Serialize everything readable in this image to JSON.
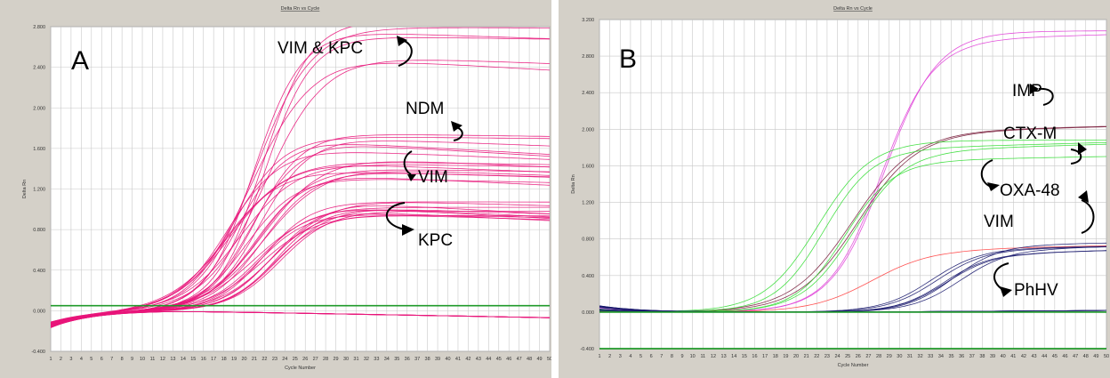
{
  "chart_data": [
    {
      "type": "line",
      "title": "Delta Rn vs Cycle",
      "xlabel": "Cycle Number",
      "ylabel": "Delta Rn",
      "panel_letter": "A",
      "xlim": [
        1,
        50
      ],
      "ylim": [
        -0.4,
        2.8
      ],
      "x_ticks": [
        1,
        2,
        3,
        4,
        5,
        6,
        7,
        8,
        9,
        10,
        11,
        12,
        13,
        14,
        15,
        16,
        17,
        18,
        19,
        20,
        21,
        22,
        23,
        24,
        25,
        26,
        27,
        28,
        29,
        30,
        31,
        32,
        33,
        34,
        35,
        36,
        37,
        38,
        39,
        40,
        41,
        42,
        43,
        44,
        45,
        46,
        47,
        48,
        49,
        50
      ],
      "y_ticks": [
        "-0.400",
        "0.000",
        "0.400",
        "0.800",
        "1.200",
        "1.600",
        "2.000",
        "2.400",
        "2.800"
      ],
      "threshold": 0.05,
      "grid": true,
      "series": [
        {
          "name": "VIM & KPC",
          "color": "#e8157a",
          "plateau": 2.75,
          "ct": 22,
          "count": 6
        },
        {
          "name": "NDM",
          "color": "#e8157a",
          "plateau": 1.75,
          "ct": 20,
          "count": 6
        },
        {
          "name": "VIM",
          "color": "#e8157a",
          "plateau": 1.45,
          "ct": 20,
          "count": 10
        },
        {
          "name": "KPC",
          "color": "#e8157a",
          "plateau": 1.05,
          "ct": 23,
          "count": 12
        }
      ],
      "annotations": [
        "VIM & KPC",
        "NDM",
        "VIM",
        "KPC"
      ]
    },
    {
      "type": "line",
      "title": "Delta Rn vs Cycle",
      "xlabel": "Cycle Number",
      "ylabel": "Delta Rn",
      "panel_letter": "B",
      "xlim": [
        1,
        50
      ],
      "ylim": [
        -0.4,
        3.2
      ],
      "x_ticks": [
        1,
        2,
        3,
        4,
        5,
        6,
        7,
        8,
        9,
        10,
        11,
        12,
        13,
        14,
        15,
        16,
        17,
        18,
        19,
        20,
        21,
        22,
        23,
        24,
        25,
        26,
        27,
        28,
        29,
        30,
        31,
        32,
        33,
        34,
        35,
        36,
        37,
        38,
        39,
        40,
        41,
        42,
        43,
        44,
        45,
        46,
        47,
        48,
        49,
        50
      ],
      "y_ticks": [
        "-0.400",
        "0.000",
        "0.400",
        "0.800",
        "1.200",
        "1.600",
        "2.000",
        "2.400",
        "2.800",
        "3.200"
      ],
      "threshold": 0.0,
      "grid": true,
      "series": [
        {
          "name": "IMP",
          "color": "#e040d8",
          "plateau": 3.0,
          "ct": 28,
          "count": 2
        },
        {
          "name": "CTX-M",
          "color": "#7a1f3d",
          "plateau": 2.05,
          "ct": 26,
          "count": 2
        },
        {
          "name": "OXA-48",
          "color": "#33dd33",
          "plateau": 1.8,
          "ct": 24,
          "count": 4
        },
        {
          "name": "VIM",
          "color": "#ff4040",
          "plateau": 0.72,
          "ct": 28,
          "count": 1
        },
        {
          "name": "PhHV",
          "color": "#1a1a6e",
          "plateau": 0.72,
          "ct": 35,
          "count": 6
        }
      ],
      "annotations": [
        "IMP",
        "CTX-M",
        "OXA-48",
        "VIM",
        "PhHV"
      ]
    }
  ]
}
